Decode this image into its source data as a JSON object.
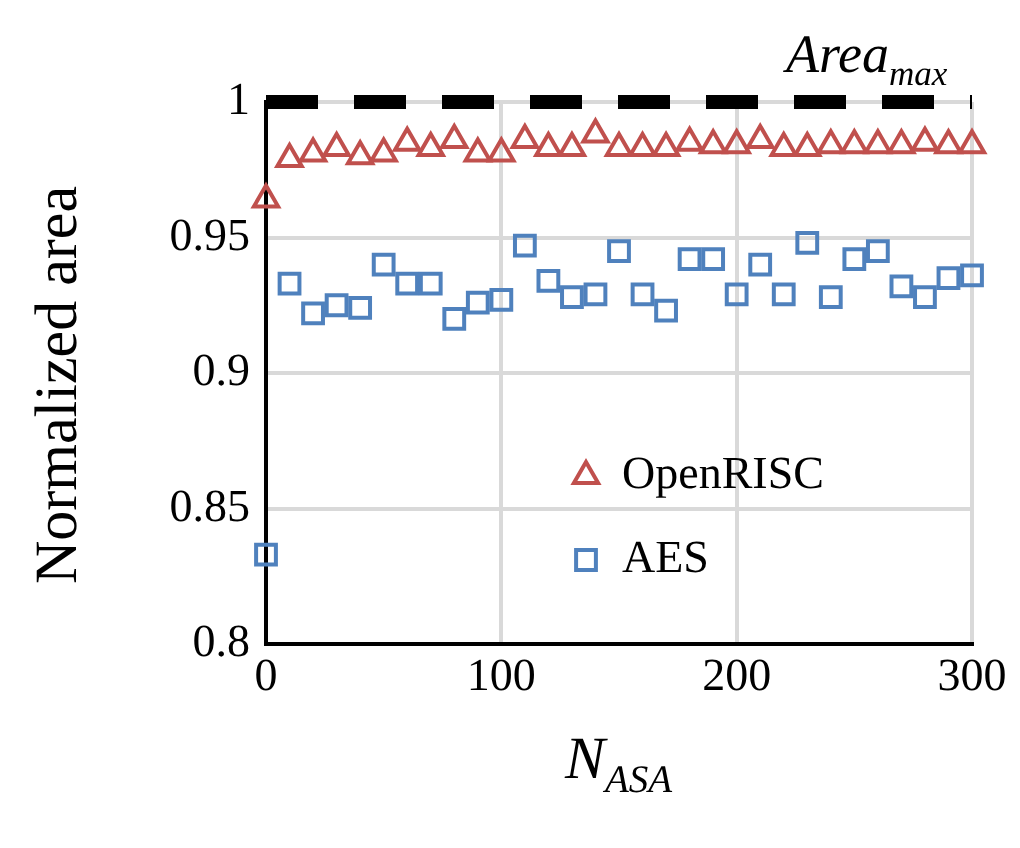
{
  "chart_data": {
    "type": "scatter",
    "xlabel": "N$_{ASA}$",
    "ylabel": "Normalized area",
    "x": [
      0,
      10,
      20,
      30,
      40,
      50,
      60,
      70,
      80,
      90,
      100,
      110,
      120,
      130,
      140,
      150,
      160,
      170,
      180,
      190,
      200,
      210,
      220,
      230,
      240,
      250,
      260,
      270,
      280,
      290,
      300
    ],
    "series": [
      {
        "name": "OpenRISC",
        "color": "#c0504d",
        "marker": "triangle",
        "values": [
          0.964,
          0.979,
          0.981,
          0.983,
          0.98,
          0.981,
          0.985,
          0.983,
          0.986,
          0.981,
          0.981,
          0.986,
          0.983,
          0.983,
          0.988,
          0.983,
          0.983,
          0.983,
          0.985,
          0.984,
          0.984,
          0.986,
          0.983,
          0.983,
          0.984,
          0.984,
          0.984,
          0.984,
          0.985,
          0.984,
          0.984
        ]
      },
      {
        "name": "AES",
        "color": "#4f81bd",
        "marker": "square",
        "values": [
          0.833,
          0.933,
          0.922,
          0.925,
          0.924,
          0.94,
          0.933,
          0.933,
          0.92,
          0.926,
          0.927,
          0.947,
          0.934,
          0.928,
          0.929,
          0.945,
          0.929,
          0.923,
          0.942,
          0.942,
          0.929,
          0.94,
          0.929,
          0.948,
          0.928,
          0.942,
          0.945,
          0.932,
          0.928,
          0.935,
          0.936
        ]
      }
    ],
    "xlim": [
      0,
      300
    ],
    "xticks": [
      0,
      100,
      200,
      300
    ],
    "ylim": [
      0.8,
      1
    ],
    "yticks": [
      0.8,
      0.85,
      0.9,
      0.95,
      1
    ],
    "ref_lines": [
      {
        "axis": "y",
        "value": 1,
        "label": "Area$_{max}$",
        "color": "#000000",
        "line_style": "dashed"
      }
    ],
    "grid": true,
    "legend": "bottom right"
  }
}
